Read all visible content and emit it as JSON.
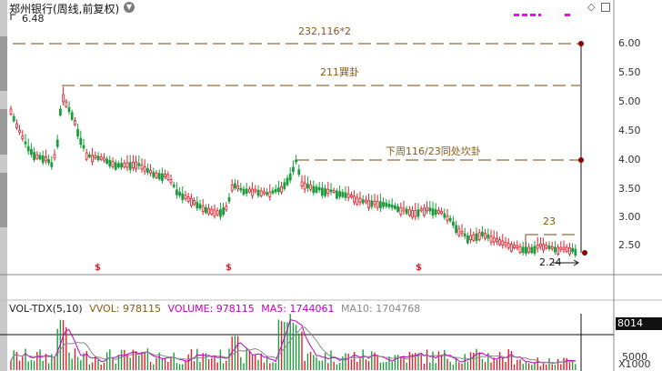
{
  "window": {
    "title": "郑州银行(周线,前复权)",
    "title_dropdown_icon": "chevron-down-icon"
  },
  "toolbar": {
    "diamond_icon": "diamond-icon",
    "maximize_icon": "square-icon"
  },
  "price_panel": {
    "high_label": "6.48",
    "low_label": "2.24",
    "y_axis_ticks": [
      "6.00",
      "5.50",
      "5.00",
      "4.50",
      "4.00",
      "3.50",
      "3.00",
      "2.50"
    ],
    "annotations": [
      "232,116*2",
      "211巽卦",
      "下周116/23同处坎卦",
      "23"
    ],
    "signal_markers": [
      "$",
      "$",
      "$"
    ]
  },
  "volume_panel": {
    "legend": {
      "name": "VOL-TDX(5,10)",
      "vvol": "VVOL: 978115",
      "volume": "VOLUME: 978115",
      "ma5": "MA5: 1744061",
      "ma10": "MA10: 1704768"
    },
    "current_box": "8014",
    "y_axis_ticks": [
      "5000",
      "X1000"
    ]
  },
  "colors": {
    "up": "#e0202e",
    "down": "#1a9e3a",
    "dashed_line": "#7a4a0a",
    "ma5": "#c000c0",
    "ma10": "#888888",
    "vol_legend_name": "#222222",
    "vvol": "#8a5a12",
    "volume": "#c000c0",
    "ma5_text": "#c000c0",
    "ma10_text": "#888888"
  }
}
